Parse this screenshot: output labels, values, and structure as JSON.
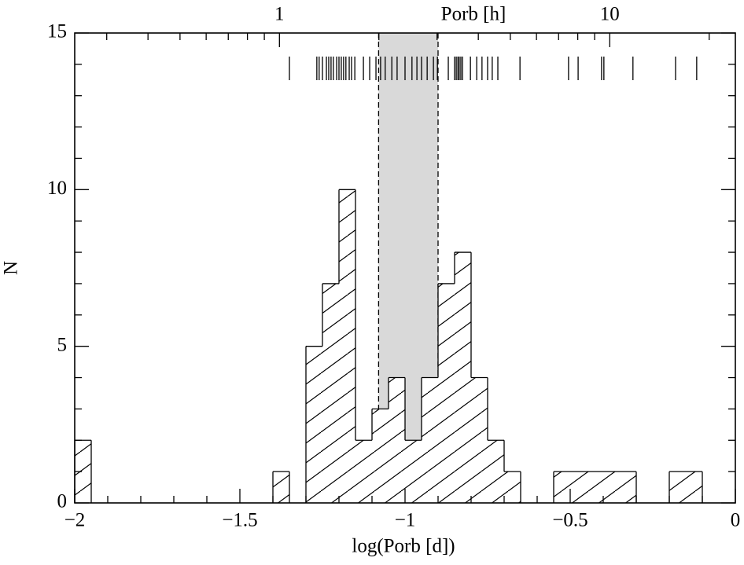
{
  "chart_data": {
    "type": "histogram",
    "xlabel": "log(Porb [d])",
    "ylabel": "N",
    "x2label": "Porb [h]",
    "bins": [
      -2,
      -1.95,
      -1.9,
      -1.85,
      -1.8,
      -1.75,
      -1.7,
      -1.65,
      -1.6,
      -1.55,
      -1.5,
      -1.45,
      -1.4,
      -1.35,
      -1.3,
      -1.25,
      -1.2,
      -1.15,
      -1.1,
      -1.05,
      -1,
      -0.95,
      -0.9,
      -0.85,
      -0.8,
      -0.75,
      -0.7,
      -0.65,
      -0.6,
      -0.55,
      -0.5,
      -0.45,
      -0.4,
      -0.35,
      -0.3,
      -0.25,
      -0.2,
      -0.15,
      -0.1,
      -0.05,
      0
    ],
    "values": [
      2,
      0,
      0,
      0,
      0,
      0,
      0,
      0,
      0,
      0,
      0,
      0,
      1,
      0,
      5,
      7,
      10,
      2,
      3,
      4,
      2,
      4,
      7,
      8,
      4,
      2,
      1,
      0,
      0,
      1,
      1,
      1,
      1,
      1,
      0,
      0,
      1,
      1,
      0,
      0
    ],
    "gap": [
      -1.08,
      -0.9
    ],
    "gap_color": "#d9d9d9",
    "rug": [
      -1.35,
      -1.267,
      -1.26,
      -1.25,
      -1.238,
      -1.231,
      -1.224,
      -1.217,
      -1.207,
      -1.2,
      -1.193,
      -1.186,
      -1.179,
      -1.169,
      -1.162,
      -1.152,
      -1.126,
      -1.107,
      -1.088,
      -1.074,
      -1.06,
      -1.04,
      -1.024,
      -1,
      -0.979,
      -0.964,
      -0.95,
      -0.933,
      -0.914,
      -0.902,
      -0.869,
      -0.85,
      -0.845,
      -0.84,
      -0.836,
      -0.831,
      -0.826,
      -0.802,
      -0.783,
      -0.767,
      -0.75,
      -0.736,
      -0.719,
      -0.652,
      -0.505,
      -0.476,
      -0.405,
      -0.398,
      -0.31,
      -0.181,
      -0.117
    ],
    "xlim": [
      -2,
      0
    ],
    "xticks": [
      -2,
      -1.5,
      -1,
      -0.5,
      0
    ],
    "xminor": [
      -1.9,
      -1.8,
      -1.7,
      -1.6,
      -1.4,
      -1.3,
      -1.2,
      -1.1,
      -0.9,
      -0.8,
      -0.7,
      -0.6,
      -0.4,
      -0.3,
      -0.2,
      -0.1
    ],
    "ylim": [
      0,
      15
    ],
    "yticks": [
      0,
      5,
      10,
      15
    ],
    "yminor": [
      1,
      2,
      3,
      4,
      6,
      7,
      8,
      9,
      11,
      12,
      13,
      14
    ],
    "x2lim": [
      0.24,
      24
    ],
    "x2scale": "log",
    "x2ticks": [
      1,
      10
    ],
    "x2minor": [
      0.3,
      0.4,
      0.5,
      0.6,
      0.7,
      0.8,
      0.9,
      2,
      3,
      4,
      5,
      6,
      7,
      8,
      9,
      20
    ]
  }
}
